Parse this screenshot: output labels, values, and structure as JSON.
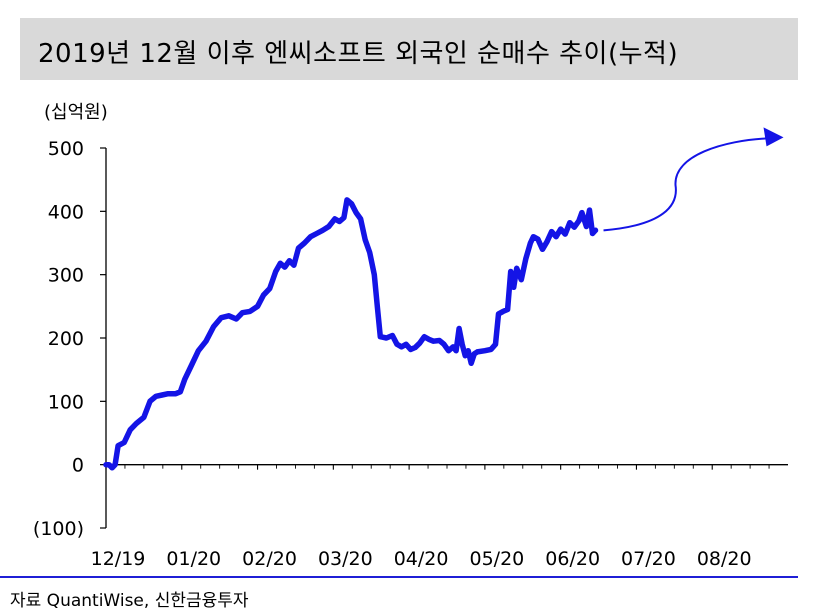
{
  "header": {
    "title": "2019년 12월 이후 엔씨소프트 외국인 순매수 추이(누적)"
  },
  "footer": {
    "source": "자료 QuantiWise, 신한금융투자"
  },
  "chart_data": {
    "type": "line",
    "title": "2019년 12월 이후 엔씨소프트 외국인 순매수 추이(누적)",
    "unit_label": "(십억원)",
    "ylim": [
      -100,
      500
    ],
    "yticks": [
      -100,
      0,
      100,
      200,
      300,
      400,
      500
    ],
    "ytick_labels": [
      "(100)",
      "0",
      "100",
      "200",
      "300",
      "400",
      "500"
    ],
    "xlim": [
      0,
      9
    ],
    "xticks": [
      0,
      1,
      2,
      3,
      4,
      5,
      6,
      7,
      8
    ],
    "xtick_labels": [
      "12/19",
      "01/20",
      "02/20",
      "03/20",
      "04/20",
      "05/20",
      "06/20",
      "07/20",
      "08/20"
    ],
    "grid": false,
    "series": [
      {
        "color": "#1414e6",
        "points": [
          [
            0.0,
            0
          ],
          [
            0.04,
            0
          ],
          [
            0.08,
            -5
          ],
          [
            0.12,
            0
          ],
          [
            0.16,
            30
          ],
          [
            0.24,
            35
          ],
          [
            0.32,
            55
          ],
          [
            0.4,
            65
          ],
          [
            0.5,
            75
          ],
          [
            0.58,
            100
          ],
          [
            0.66,
            108
          ],
          [
            0.74,
            110
          ],
          [
            0.82,
            112
          ],
          [
            0.92,
            112
          ],
          [
            0.98,
            115
          ],
          [
            1.04,
            135
          ],
          [
            1.12,
            155
          ],
          [
            1.22,
            180
          ],
          [
            1.32,
            195
          ],
          [
            1.42,
            218
          ],
          [
            1.52,
            232
          ],
          [
            1.62,
            235
          ],
          [
            1.72,
            230
          ],
          [
            1.8,
            240
          ],
          [
            1.9,
            242
          ],
          [
            2.0,
            250
          ],
          [
            2.08,
            268
          ],
          [
            2.16,
            278
          ],
          [
            2.24,
            305
          ],
          [
            2.3,
            318
          ],
          [
            2.36,
            312
          ],
          [
            2.42,
            322
          ],
          [
            2.48,
            315
          ],
          [
            2.54,
            342
          ],
          [
            2.62,
            350
          ],
          [
            2.7,
            360
          ],
          [
            2.78,
            365
          ],
          [
            2.86,
            370
          ],
          [
            2.94,
            376
          ],
          [
            3.02,
            388
          ],
          [
            3.08,
            384
          ],
          [
            3.14,
            390
          ],
          [
            3.18,
            418
          ],
          [
            3.24,
            412
          ],
          [
            3.3,
            398
          ],
          [
            3.36,
            388
          ],
          [
            3.42,
            355
          ],
          [
            3.48,
            335
          ],
          [
            3.54,
            300
          ],
          [
            3.58,
            250
          ],
          [
            3.62,
            202
          ],
          [
            3.7,
            200
          ],
          [
            3.78,
            204
          ],
          [
            3.84,
            190
          ],
          [
            3.9,
            186
          ],
          [
            3.96,
            190
          ],
          [
            4.02,
            182
          ],
          [
            4.08,
            185
          ],
          [
            4.14,
            192
          ],
          [
            4.2,
            202
          ],
          [
            4.26,
            198
          ],
          [
            4.32,
            195
          ],
          [
            4.4,
            196
          ],
          [
            4.46,
            190
          ],
          [
            4.52,
            180
          ],
          [
            4.58,
            186
          ],
          [
            4.62,
            180
          ],
          [
            4.66,
            215
          ],
          [
            4.7,
            190
          ],
          [
            4.74,
            172
          ],
          [
            4.78,
            180
          ],
          [
            4.82,
            160
          ],
          [
            4.86,
            175
          ],
          [
            4.9,
            178
          ],
          [
            5.0,
            180
          ],
          [
            5.08,
            182
          ],
          [
            5.14,
            190
          ],
          [
            5.18,
            238
          ],
          [
            5.24,
            242
          ],
          [
            5.3,
            245
          ],
          [
            5.34,
            305
          ],
          [
            5.38,
            280
          ],
          [
            5.42,
            310
          ],
          [
            5.48,
            292
          ],
          [
            5.54,
            325
          ],
          [
            5.6,
            350
          ],
          [
            5.64,
            360
          ],
          [
            5.7,
            356
          ],
          [
            5.76,
            340
          ],
          [
            5.82,
            352
          ],
          [
            5.88,
            368
          ],
          [
            5.94,
            360
          ],
          [
            6.0,
            372
          ],
          [
            6.06,
            364
          ],
          [
            6.12,
            382
          ],
          [
            6.18,
            375
          ],
          [
            6.24,
            385
          ],
          [
            6.28,
            398
          ],
          [
            6.34,
            376
          ],
          [
            6.38,
            402
          ],
          [
            6.42,
            365
          ],
          [
            6.46,
            370
          ]
        ]
      }
    ]
  }
}
